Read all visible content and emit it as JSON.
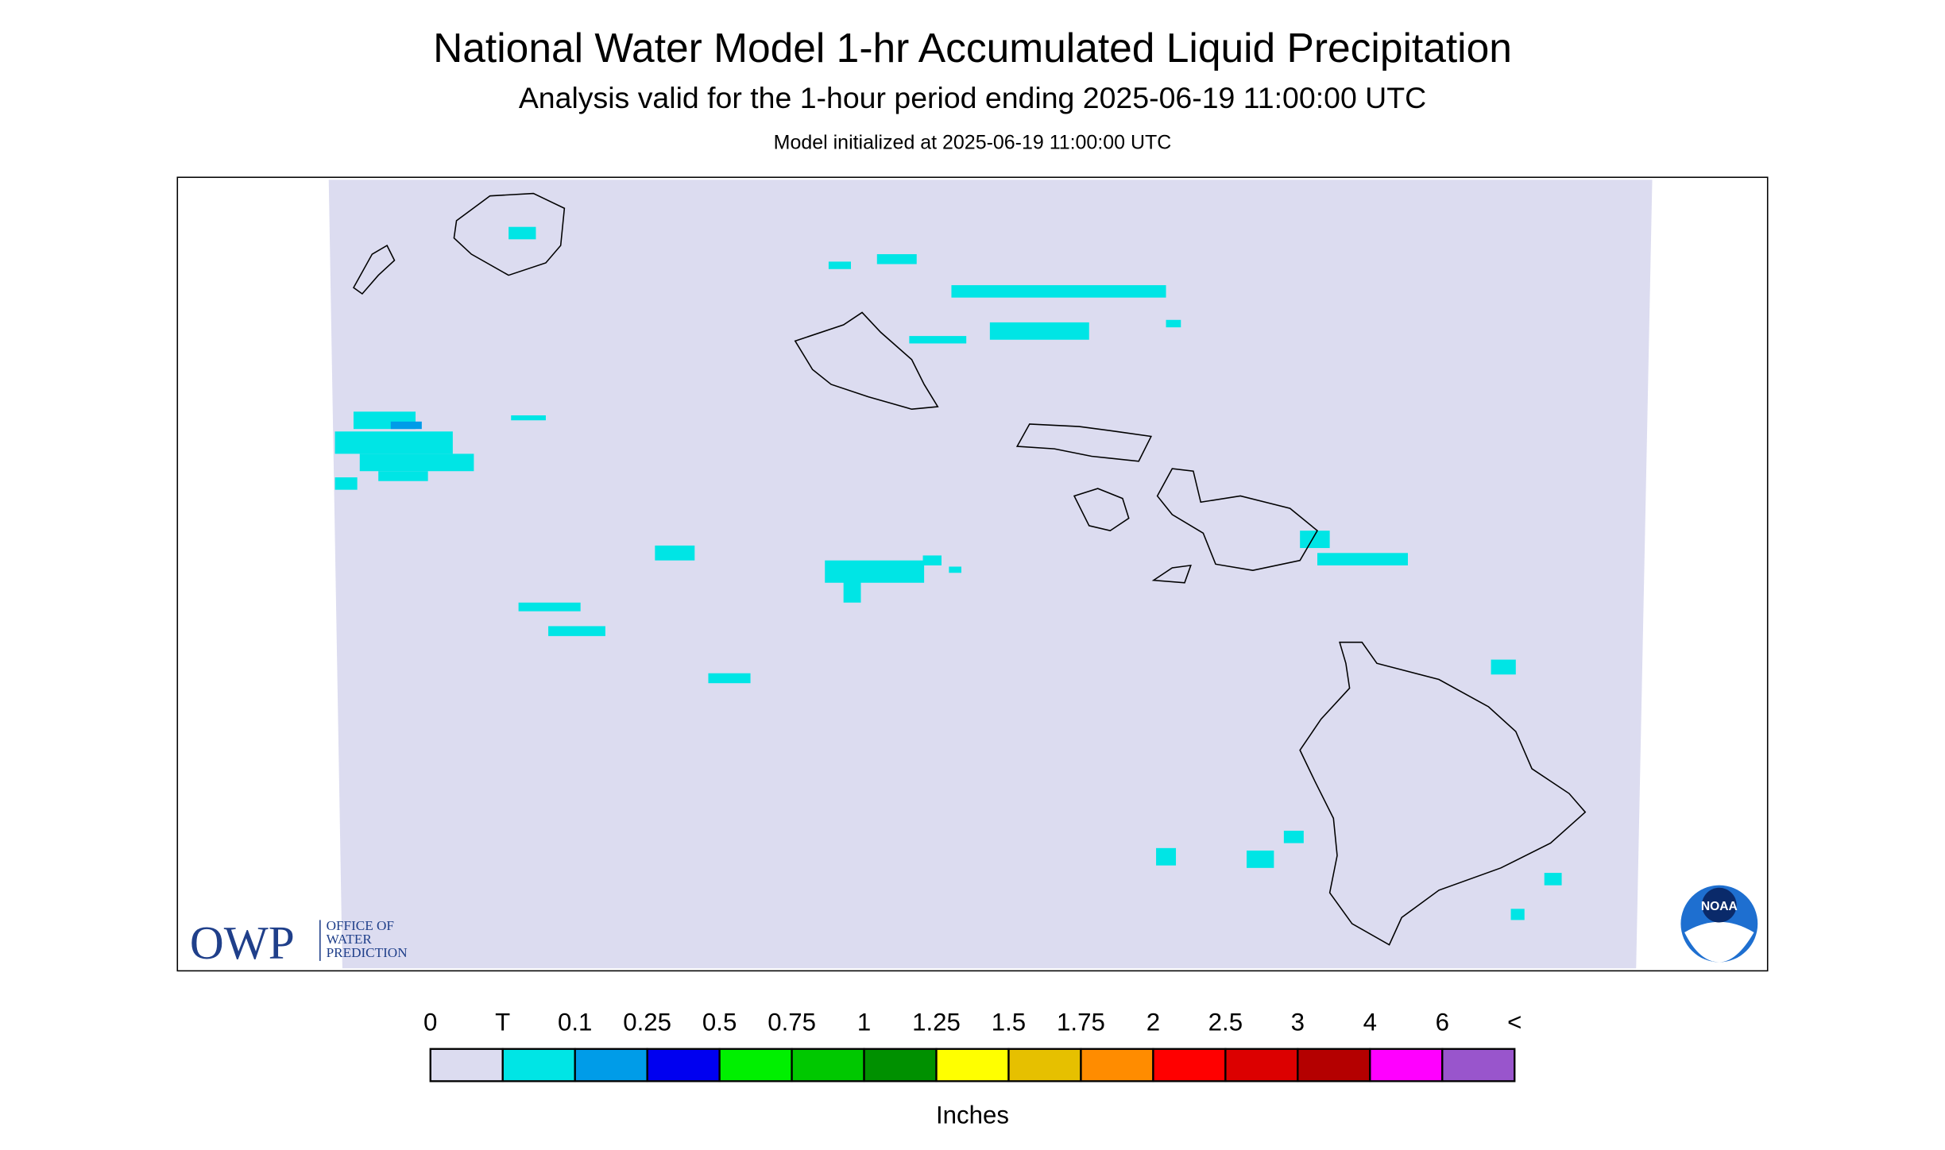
{
  "header": {
    "title": "National Water Model 1-hr Accumulated Liquid Precipitation",
    "subtitle": "Analysis valid for the 1-hour period ending 2025-06-19 11:00:00 UTC",
    "init": "Model initialized at 2025-06-19 11:00:00 UTC"
  },
  "logos": {
    "owp": "OWP",
    "owp_line1": "OFFICE OF",
    "owp_line2": "WATER",
    "owp_line3": "PREDICTION",
    "noaa": "NOAA"
  },
  "legend": {
    "labels": [
      "0",
      "T",
      "0.1",
      "0.25",
      "0.5",
      "0.75",
      "1",
      "1.25",
      "1.5",
      "1.75",
      "2",
      "2.5",
      "3",
      "4",
      "6",
      "<"
    ],
    "colors": [
      "#dcdcf0",
      "#00e5e5",
      "#009ce8",
      "#0000f0",
      "#00f000",
      "#00c800",
      "#009000",
      "#ffff00",
      "#e6c000",
      "#ff8c00",
      "#ff0000",
      "#dc0000",
      "#b40000",
      "#ff00ff",
      "#9955cc"
    ],
    "unit": "Inches"
  }
}
